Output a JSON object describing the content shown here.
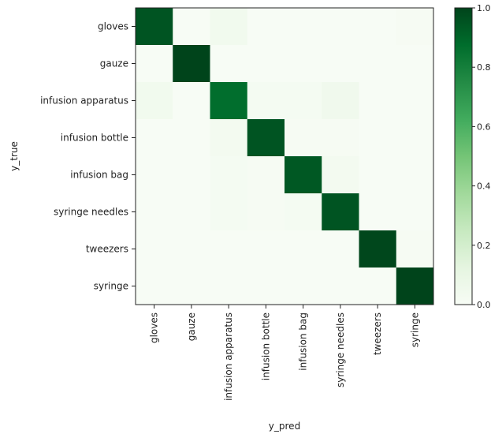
{
  "chart_data": {
    "type": "heatmap",
    "title": "",
    "xlabel": "y_pred",
    "ylabel": "y_true",
    "x_categories": [
      "gloves",
      "gauze",
      "infusion apparatus",
      "infusion bottle",
      "infusion bag",
      "syringe needles",
      "tweezers",
      "syringe"
    ],
    "y_categories": [
      "gloves",
      "gauze",
      "infusion apparatus",
      "infusion bottle",
      "infusion bag",
      "syringe needles",
      "tweezers",
      "syringe"
    ],
    "values": [
      [
        0.95,
        0.0,
        0.04,
        0.0,
        0.0,
        0.0,
        0.0,
        0.01
      ],
      [
        0.0,
        1.0,
        0.0,
        0.0,
        0.0,
        0.0,
        0.0,
        0.0
      ],
      [
        0.04,
        0.0,
        0.87,
        0.02,
        0.02,
        0.05,
        0.0,
        0.0
      ],
      [
        0.0,
        0.0,
        0.03,
        0.95,
        0.01,
        0.01,
        0.0,
        0.0
      ],
      [
        0.0,
        0.0,
        0.02,
        0.01,
        0.94,
        0.03,
        0.0,
        0.0
      ],
      [
        0.0,
        0.0,
        0.02,
        0.01,
        0.02,
        0.95,
        0.0,
        0.0
      ],
      [
        0.0,
        0.0,
        0.0,
        0.0,
        0.0,
        0.0,
        0.99,
        0.01
      ],
      [
        0.0,
        0.0,
        0.0,
        0.0,
        0.0,
        0.0,
        0.0,
        1.0
      ]
    ],
    "colorbar": {
      "range": [
        0.0,
        1.0
      ],
      "ticks": [
        0.0,
        0.2,
        0.4,
        0.6,
        0.8,
        1.0
      ],
      "tick_labels": [
        "0.0",
        "0.2",
        "0.4",
        "0.6",
        "0.8",
        "1.0"
      ],
      "colormap": "Greens",
      "low_color": "#f7fcf5",
      "high_color": "#00441b"
    },
    "grid": false
  }
}
